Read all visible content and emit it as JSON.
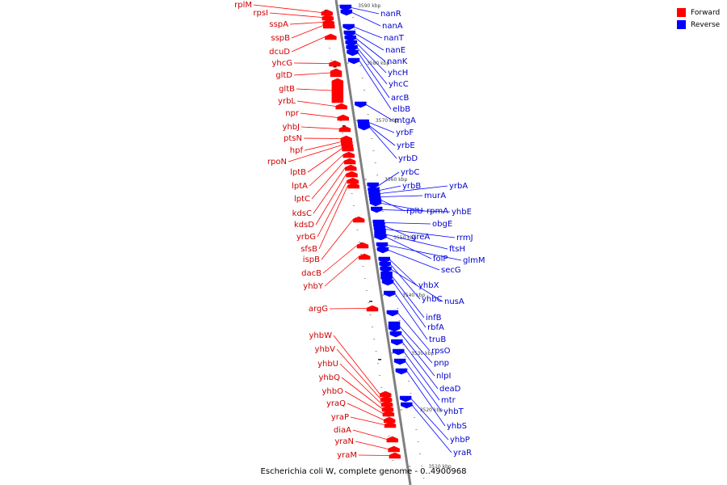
{
  "caption": "Escherichia coli W, complete genome - 0..4900968",
  "legend": [
    {
      "label": "Forward",
      "color": "#ff0000"
    },
    {
      "label": "Reverse",
      "color": "#0000ff"
    }
  ],
  "colors": {
    "forward": "#ff0000",
    "reverse": "#0000ff",
    "label_forward": "#cc0000",
    "label_reverse": "#0000cc",
    "axis": "#808080"
  },
  "ticks": [
    "3590 kbp",
    "3580 kbp",
    "3570 kbp",
    "3560 kbp",
    "3550 kbp",
    "3540 kbp",
    "3530 kbp",
    "3520 kbp",
    "3510 kbp"
  ],
  "forward_genes": [
    "rplM",
    "rpsI",
    "sspA",
    "sspB",
    "dcuD",
    "yhcG",
    "gltD",
    "gltB",
    "yrbL",
    "npr",
    "yhbJ",
    "ptsN",
    "hpf",
    "rpoN",
    "lptB",
    "lptA",
    "lptC",
    "kdsC",
    "kdsD",
    "yrbG",
    "sfsB",
    "ispB",
    "dacB",
    "yhbY",
    "argG",
    "yhbW",
    "yhbV",
    "yhbU",
    "yhbQ",
    "yhbO",
    "yraQ",
    "yraP",
    "diaA",
    "yraN",
    "yraM"
  ],
  "reverse_genes": [
    "nanR",
    "nanA",
    "nanT",
    "nanE",
    "nanK",
    "yhcH",
    "yhcC",
    "arcB",
    "elbB",
    "mtgA",
    "yrbF",
    "yrbE",
    "yrbD",
    "yrbC",
    "yrbB",
    "yrbA",
    "murA",
    "rplU",
    "rpmA",
    "yhbE",
    "obgE",
    "greA",
    "rrmJ",
    "ftsH",
    "folP",
    "glmM",
    "secG",
    "yhbX",
    "yhbC",
    "nusA",
    "infB",
    "rbfA",
    "truB",
    "rpsO",
    "pnp",
    "nlpI",
    "deaD",
    "mtr",
    "yhbT",
    "yhbS",
    "yhbP",
    "yraR"
  ]
}
